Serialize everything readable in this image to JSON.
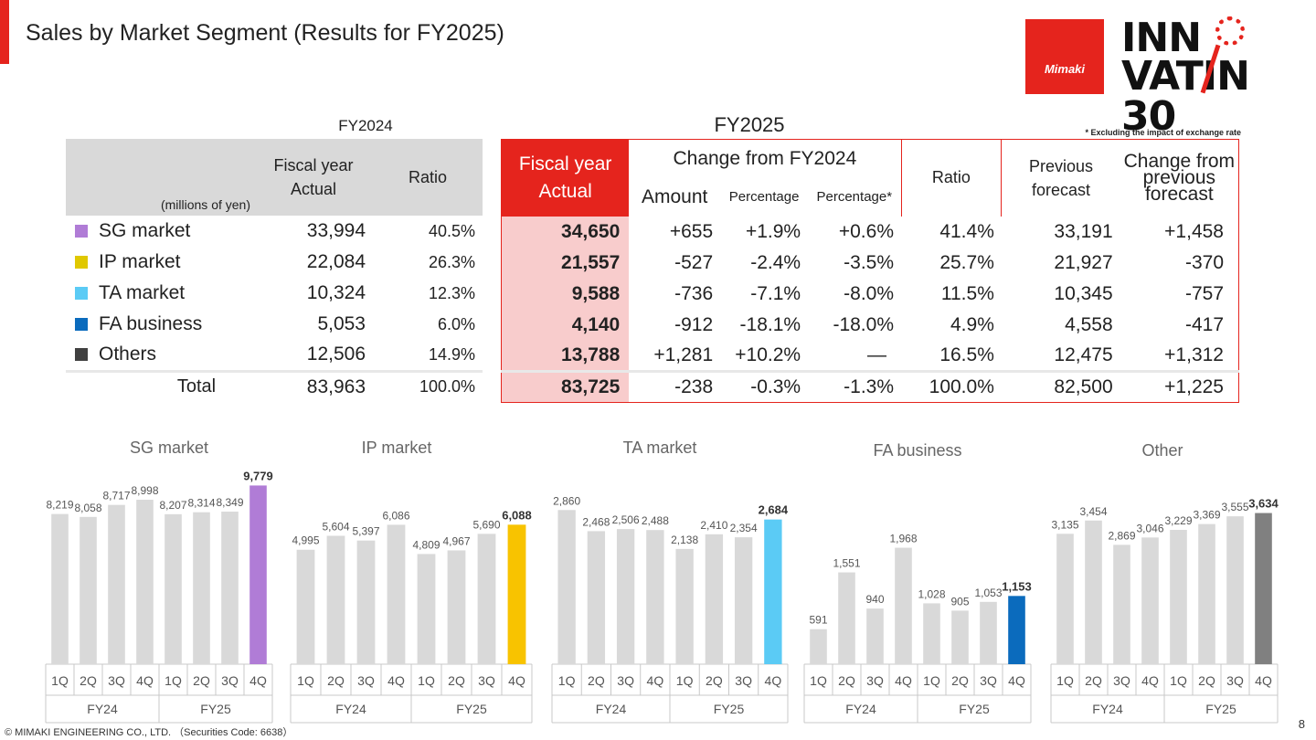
{
  "header": {
    "title": "Sales by Market Segment (Results for FY2025)",
    "logo_brand": "Mimaki",
    "logo_line1": "INN",
    "logo_line2": "VATI",
    "logo_line2b": "N 30"
  },
  "fy2024_label": "FY2024",
  "fy2025_label": "FY2025",
  "note": "* Excluding the impact of exchange rate",
  "table24": {
    "unit_label": "(millions of yen)",
    "col_actual": "Fiscal year Actual",
    "col_ratio": "Ratio",
    "rows": [
      {
        "segment": "SG market",
        "actual": "33,994",
        "ratio": "40.5%"
      },
      {
        "segment": "IP market",
        "actual": "22,084",
        "ratio": "26.3%"
      },
      {
        "segment": "TA market",
        "actual": "10,324",
        "ratio": "12.3%"
      },
      {
        "segment": "FA business",
        "actual": "5,053",
        "ratio": "6.0%"
      },
      {
        "segment": "Others",
        "actual": "12,506",
        "ratio": "14.9%"
      },
      {
        "segment": "Total",
        "actual": "83,963",
        "ratio": "100.0%"
      }
    ]
  },
  "table25": {
    "col_actual": "Fiscal year Actual",
    "col_change": "Change from FY2024",
    "col_amount": "Amount",
    "col_pct": "Percentage",
    "col_pct_star": "Percentage*",
    "col_ratio": "Ratio",
    "col_prev": "Previous forecast",
    "col_change_prev": "Change from previous forecast",
    "rows": [
      {
        "actual": "34,650",
        "amount": "+655",
        "pct": "+1.9%",
        "pct_star": "+0.6%",
        "ratio": "41.4%",
        "prev": "33,191",
        "chg": "+1,458"
      },
      {
        "actual": "21,557",
        "amount": "-527",
        "pct": "-2.4%",
        "pct_star": "-3.5%",
        "ratio": "25.7%",
        "prev": "21,927",
        "chg": "-370"
      },
      {
        "actual": "9,588",
        "amount": "-736",
        "pct": "-7.1%",
        "pct_star": "-8.0%",
        "ratio": "11.5%",
        "prev": "10,345",
        "chg": "-757"
      },
      {
        "actual": "4,140",
        "amount": "-912",
        "pct": "-18.1%",
        "pct_star": "-18.0%",
        "ratio": "4.9%",
        "prev": "4,558",
        "chg": "-417"
      },
      {
        "actual": "13,788",
        "amount": "+1,281",
        "pct": "+10.2%",
        "pct_star": "—",
        "ratio": "16.5%",
        "prev": "12,475",
        "chg": "+1,312"
      },
      {
        "actual": "83,725",
        "amount": "-238",
        "pct": "-0.3%",
        "pct_star": "-1.3%",
        "ratio": "100.0%",
        "prev": "82,500",
        "chg": "+1,225"
      }
    ]
  },
  "colors": {
    "brand_red": "#e5241d",
    "sg": "#b07cd6",
    "ip": "#f2cc00",
    "ta": "#5bcbf5",
    "fa": "#0b6bbd",
    "others": "#404040",
    "bar_grey": "#d9d9d9",
    "row_pink": "#f8cccc"
  },
  "chart_data": [
    {
      "type": "bar",
      "title": "SG market",
      "categories": [
        "1Q",
        "2Q",
        "3Q",
        "4Q",
        "1Q",
        "2Q",
        "3Q",
        "4Q"
      ],
      "groups": [
        "FY24",
        "FY25"
      ],
      "values": [
        8219,
        8058,
        8717,
        8998,
        8207,
        8314,
        8349,
        9779
      ],
      "labels": [
        "8,219",
        "8,058",
        "8,717",
        "8,998",
        "8,207",
        "8,314",
        "8,349",
        "9,779"
      ],
      "highlight_color": "#b07cd6"
    },
    {
      "type": "bar",
      "title": "IP market",
      "categories": [
        "1Q",
        "2Q",
        "3Q",
        "4Q",
        "1Q",
        "2Q",
        "3Q",
        "4Q"
      ],
      "groups": [
        "FY24",
        "FY25"
      ],
      "values": [
        4995,
        5604,
        5397,
        6086,
        4809,
        4967,
        5690,
        6088
      ],
      "labels": [
        "4,995",
        "5,604",
        "5,397",
        "6,086",
        "4,809",
        "4,967",
        "5,690",
        "6,088"
      ],
      "highlight_color": "#f8c300"
    },
    {
      "type": "bar",
      "title": "TA market",
      "categories": [
        "1Q",
        "2Q",
        "3Q",
        "4Q",
        "1Q",
        "2Q",
        "3Q",
        "4Q"
      ],
      "groups": [
        "FY24",
        "FY25"
      ],
      "values": [
        2860,
        2468,
        2506,
        2488,
        2138,
        2410,
        2354,
        2684
      ],
      "labels": [
        "2,860",
        "2,468",
        "2,506",
        "2,488",
        "2,138",
        "2,410",
        "2,354",
        "2,684"
      ],
      "highlight_color": "#5bcbf5"
    },
    {
      "type": "bar",
      "title": "FA business",
      "categories": [
        "1Q",
        "2Q",
        "3Q",
        "4Q",
        "1Q",
        "2Q",
        "3Q",
        "4Q"
      ],
      "groups": [
        "FY24",
        "FY25"
      ],
      "values": [
        591,
        1551,
        940,
        1968,
        1028,
        905,
        1053,
        1153
      ],
      "labels": [
        "591",
        "1,551",
        "940",
        "1,968",
        "1,028",
        "905",
        "1,053",
        "1,153"
      ],
      "highlight_color": "#0b6bbd"
    },
    {
      "type": "bar",
      "title": "Other",
      "categories": [
        "1Q",
        "2Q",
        "3Q",
        "4Q",
        "1Q",
        "2Q",
        "3Q",
        "4Q"
      ],
      "groups": [
        "FY24",
        "FY25"
      ],
      "values": [
        3135,
        3454,
        2869,
        3046,
        3229,
        3369,
        3555,
        3634
      ],
      "labels": [
        "3,135",
        "3,454",
        "2,869",
        "3,046",
        "3,229",
        "3,369",
        "3,555",
        "3,634"
      ],
      "highlight_color": "#808080"
    }
  ],
  "footer": {
    "copyright": "© MIMAKI ENGINEERING CO., LTD. （Securities Code: 6638）",
    "page": "8"
  }
}
